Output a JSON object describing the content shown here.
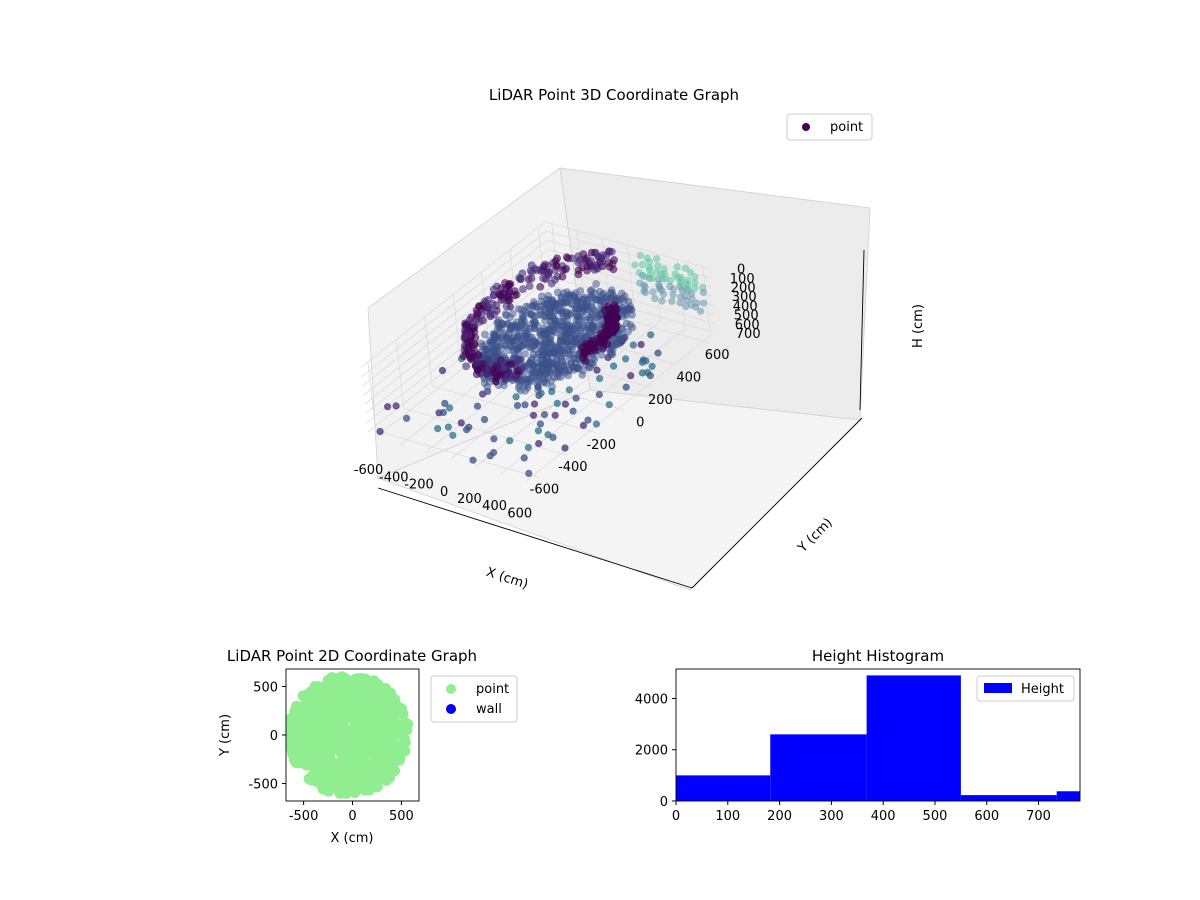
{
  "chart_data": [
    {
      "type": "scatter3d",
      "title": "LiDAR Point 3D Coordinate Graph",
      "xlabel": "X (cm)",
      "ylabel": "Y (cm)",
      "zlabel": "H (cm)",
      "x_ticks": [
        -600,
        -400,
        -200,
        0,
        200,
        400,
        600
      ],
      "y_ticks": [
        -600,
        -400,
        -200,
        0,
        200,
        400,
        600
      ],
      "z_ticks": [
        0,
        100,
        200,
        300,
        400,
        500,
        600,
        700
      ],
      "z_inverted": true,
      "xlim": [
        -650,
        650
      ],
      "ylim": [
        -650,
        650
      ],
      "zlim": [
        0,
        750
      ],
      "legend": {
        "placement": "upper-right",
        "entries": [
          {
            "label": "point",
            "color": "#440154"
          }
        ]
      },
      "colormap": "viridis",
      "grid": true,
      "series": [
        {
          "name": "point"
        }
      ]
    },
    {
      "type": "scatter",
      "title": "LiDAR Point 2D Coordinate Graph",
      "xlabel": "X (cm)",
      "ylabel": "Y (cm)",
      "x_ticks": [
        -500,
        0,
        500
      ],
      "y_ticks": [
        -500,
        0,
        500
      ],
      "xlim": [
        -680,
        680
      ],
      "ylim": [
        -680,
        680
      ],
      "legend": {
        "placement": "outside-right",
        "entries": [
          {
            "label": "point",
            "color": "#90ee90"
          },
          {
            "label": "wall",
            "color": "#0000ff"
          }
        ]
      },
      "series": [
        {
          "name": "point",
          "color": "#90ee90",
          "shape": "dense disc, radius ~600, slight right-side gaps"
        },
        {
          "name": "wall",
          "color": "#0000ff",
          "values": []
        }
      ]
    },
    {
      "type": "bar",
      "subtype": "histogram",
      "title": "Height Histogram",
      "x_ticks": [
        0,
        100,
        200,
        300,
        400,
        500,
        600,
        700
      ],
      "y_ticks": [
        0,
        2000,
        4000
      ],
      "xlim": [
        0,
        780
      ],
      "ylim": [
        0,
        5150
      ],
      "legend": {
        "placement": "upper-right",
        "entries": [
          {
            "label": "Height",
            "color": "#0000ff"
          }
        ]
      },
      "bins": [
        {
          "start": 0,
          "end": 182,
          "count": 1000
        },
        {
          "start": 182,
          "end": 368,
          "count": 2600
        },
        {
          "start": 368,
          "end": 550,
          "count": 4900
        },
        {
          "start": 550,
          "end": 735,
          "count": 230
        },
        {
          "start": 735,
          "end": 780,
          "count": 380
        }
      ],
      "color": "#0000ff"
    }
  ]
}
